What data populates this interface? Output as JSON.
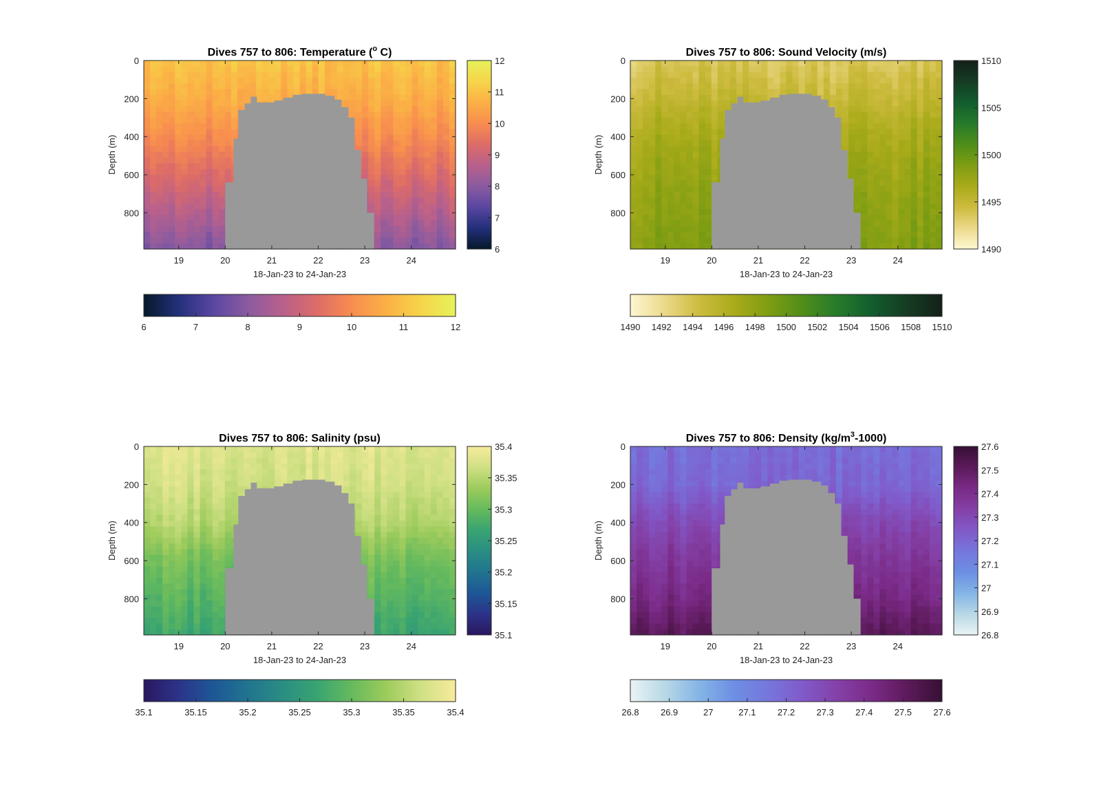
{
  "chart_data": [
    {
      "type": "heatmap",
      "title_prefix": "Dives 757 to 806: Temperature (",
      "title_sup": "o",
      "title_suffix": " C)",
      "xlabel": "18-Jan-23 to 24-Jan-23",
      "ylabel": "Depth (m)",
      "xlim": [
        18.25,
        24.95
      ],
      "ylim": [
        0,
        990
      ],
      "xticks": [
        19,
        20,
        21,
        22,
        23,
        24
      ],
      "yticks": [
        0,
        200,
        400,
        600,
        800
      ],
      "colorbar": {
        "min": 6,
        "max": 12,
        "ticks": [
          "6",
          "7",
          "8",
          "9",
          "10",
          "11",
          "12"
        ]
      },
      "colormap": [
        "#06192a",
        "#22307a",
        "#5a46a2",
        "#8a5ba0",
        "#b8608c",
        "#dd6c67",
        "#f88d4f",
        "#fbb045",
        "#f6d54a",
        "#e6f25a"
      ],
      "data_gap_color": "#999999",
      "value_by_depth": [
        {
          "depth": 0,
          "value": 11.0
        },
        {
          "depth": 200,
          "value": 10.6
        },
        {
          "depth": 400,
          "value": 10.0
        },
        {
          "depth": 600,
          "value": 9.3
        },
        {
          "depth": 800,
          "value": 8.6
        },
        {
          "depth": 990,
          "value": 7.9
        }
      ]
    },
    {
      "type": "heatmap",
      "title_prefix": "Dives 757 to 806: Sound Velocity (m/s)",
      "title_sup": "",
      "title_suffix": "",
      "xlabel": "18-Jan-23 to 24-Jan-23",
      "ylabel": "Depth (m)",
      "xlim": [
        18.25,
        24.95
      ],
      "ylim": [
        0,
        990
      ],
      "xticks": [
        19,
        20,
        21,
        22,
        23,
        24
      ],
      "yticks": [
        0,
        200,
        400,
        600,
        800
      ],
      "colorbar": {
        "min": 1490,
        "max": 1510,
        "ticks": [
          "1490",
          "1492",
          "1494",
          "1496",
          "1498",
          "1500",
          "1502",
          "1504",
          "1506",
          "1508",
          "1510"
        ],
        "side_ticks": [
          "1490",
          "1495",
          "1500",
          "1505",
          "1510"
        ]
      },
      "colormap": [
        "#fdf7d2",
        "#ebd989",
        "#cdbb3e",
        "#a9ab1a",
        "#7e9d12",
        "#4f8d1a",
        "#257a2b",
        "#125c2e",
        "#153c23",
        "#142018"
      ],
      "data_gap_color": "#999999",
      "value_by_depth": [
        {
          "depth": 0,
          "value": 1493.5
        },
        {
          "depth": 200,
          "value": 1495.0
        },
        {
          "depth": 400,
          "value": 1496.6
        },
        {
          "depth": 600,
          "value": 1497.5
        },
        {
          "depth": 800,
          "value": 1498.1
        },
        {
          "depth": 990,
          "value": 1498.6
        }
      ]
    },
    {
      "type": "heatmap",
      "title_prefix": "Dives 757 to 806: Salinity (psu)",
      "title_sup": "",
      "title_suffix": "",
      "xlabel": "18-Jan-23 to 24-Jan-23",
      "ylabel": "Depth (m)",
      "xlim": [
        18.25,
        24.95
      ],
      "ylim": [
        0,
        990
      ],
      "xticks": [
        19,
        20,
        21,
        22,
        23,
        24
      ],
      "yticks": [
        0,
        200,
        400,
        600,
        800
      ],
      "colorbar": {
        "min": 35.1,
        "max": 35.4,
        "ticks": [
          "35.1",
          "35.15",
          "35.2",
          "35.25",
          "35.3",
          "35.35",
          "35.4"
        ]
      },
      "colormap": [
        "#2a1760",
        "#2c3389",
        "#1d5796",
        "#21748f",
        "#2a8d83",
        "#39a471",
        "#66ba5d",
        "#9dcb5c",
        "#d0e084",
        "#f7eb9c"
      ],
      "data_gap_color": "#999999",
      "value_by_depth": [
        {
          "depth": 0,
          "value": 35.38
        },
        {
          "depth": 200,
          "value": 35.37
        },
        {
          "depth": 400,
          "value": 35.35
        },
        {
          "depth": 600,
          "value": 35.31
        },
        {
          "depth": 800,
          "value": 35.29
        },
        {
          "depth": 990,
          "value": 35.27
        }
      ]
    },
    {
      "type": "heatmap",
      "title_prefix": "Dives 757 to 806: Density (kg/m",
      "title_sup": "3",
      "title_suffix": "-1000)",
      "xlabel": "18-Jan-23 to 24-Jan-23",
      "ylabel": "Depth (m)",
      "xlim": [
        18.25,
        24.95
      ],
      "ylim": [
        0,
        990
      ],
      "xticks": [
        19,
        20,
        21,
        22,
        23,
        24
      ],
      "yticks": [
        0,
        200,
        400,
        600,
        800
      ],
      "colorbar": {
        "min": 26.8,
        "max": 27.6,
        "ticks": [
          "26.8",
          "26.9",
          "27",
          "27.1",
          "27.2",
          "27.3",
          "27.4",
          "27.5",
          "27.6"
        ]
      },
      "colormap": [
        "#eaf3f4",
        "#b7d8e6",
        "#84b4e6",
        "#6d8fe3",
        "#7676dc",
        "#8159c8",
        "#8440a6",
        "#7a2a86",
        "#5c1a5a",
        "#361034"
      ],
      "data_gap_color": "#999999",
      "value_by_depth": [
        {
          "depth": 0,
          "value": 27.18
        },
        {
          "depth": 200,
          "value": 27.2
        },
        {
          "depth": 400,
          "value": 27.3
        },
        {
          "depth": 600,
          "value": 27.37
        },
        {
          "depth": 800,
          "value": 27.43
        },
        {
          "depth": 990,
          "value": 27.52
        }
      ]
    }
  ]
}
